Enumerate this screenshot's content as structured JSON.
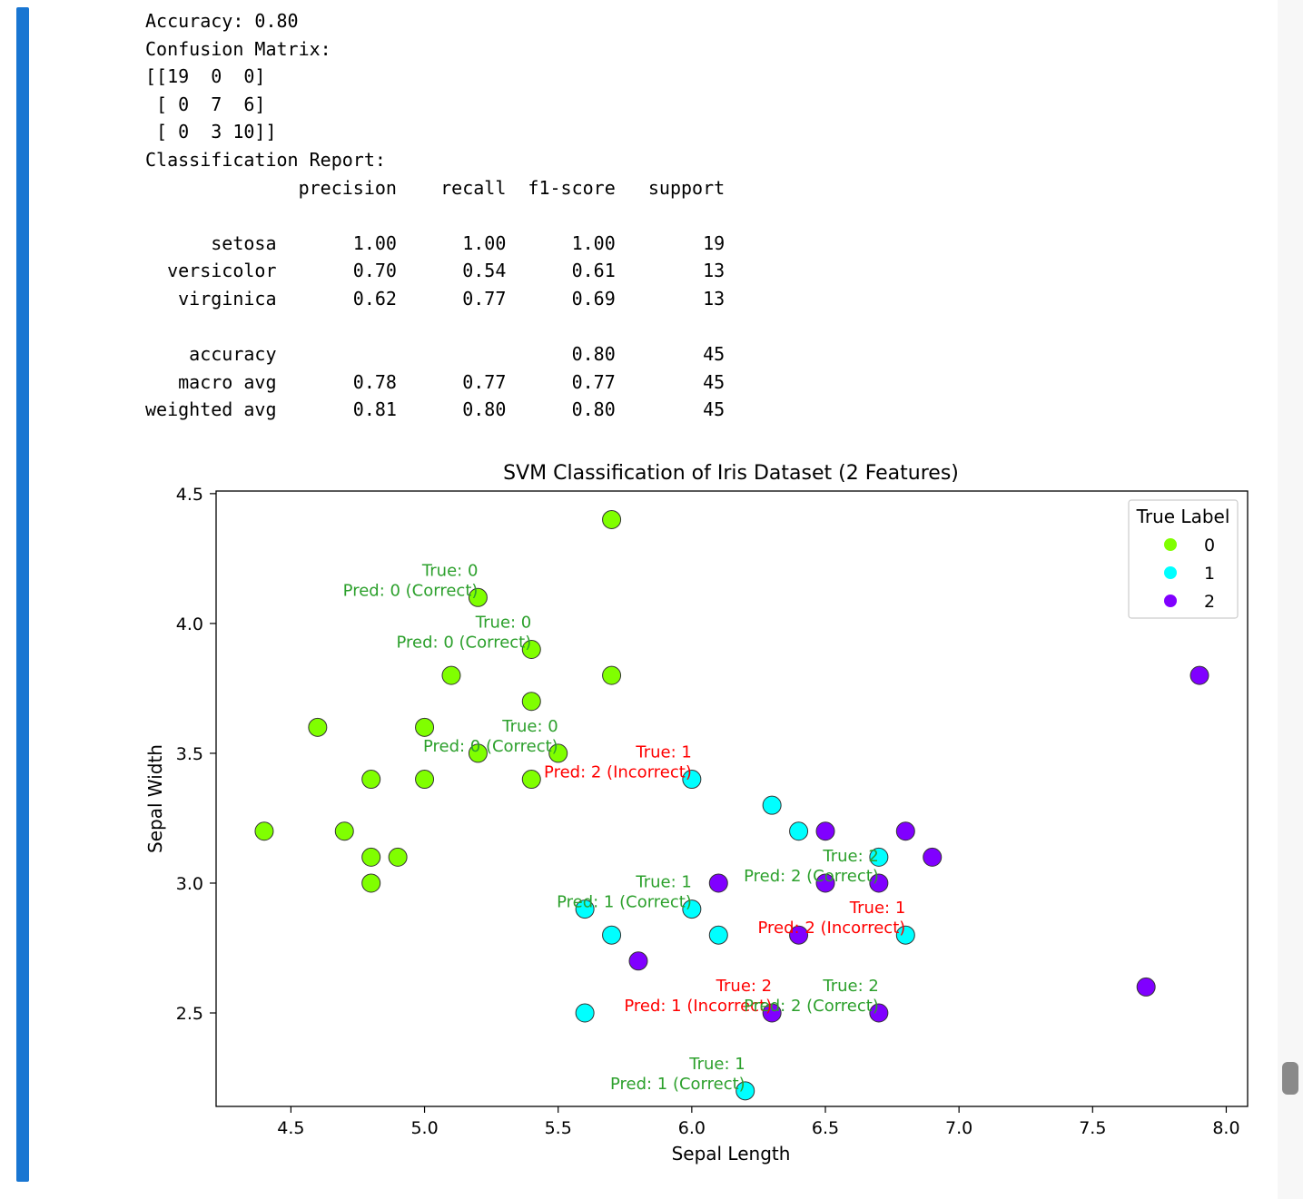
{
  "output": {
    "lines": [
      "Accuracy: 0.80",
      "Confusion Matrix:",
      "[[19  0  0]",
      " [ 0  7  6]",
      " [ 0  3 10]]",
      "Classification Report:",
      "              precision    recall  f1-score   support",
      "",
      "      setosa       1.00      1.00      1.00        19",
      "  versicolor       0.70      0.54      0.61        13",
      "   virginica       0.62      0.77      0.69        13",
      "",
      "    accuracy                           0.80        45",
      "   macro avg       0.78      0.77      0.77        45",
      "weighted avg       0.81      0.80      0.80        45"
    ]
  },
  "chart_data": {
    "type": "scatter",
    "title": "SVM Classification of Iris Dataset (2 Features)",
    "xlabel": "Sepal Length",
    "ylabel": "Sepal Width",
    "xlim": [
      4.22,
      8.08
    ],
    "ylim": [
      2.14,
      4.51
    ],
    "xticks": [
      "4.5",
      "5.0",
      "5.5",
      "6.0",
      "6.5",
      "7.0",
      "7.5",
      "8.0"
    ],
    "yticks": [
      "2.5",
      "3.0",
      "3.5",
      "4.0",
      "4.5"
    ],
    "grid": false,
    "legend": {
      "title": "True Label",
      "placement": "top-right",
      "entries": [
        {
          "label": "0",
          "color": "#80ff00"
        },
        {
          "label": "1",
          "color": "#00ffff"
        },
        {
          "label": "2",
          "color": "#8000ff"
        }
      ]
    },
    "class_colors": {
      "0": "#80ff00",
      "1": "#00ffff",
      "2": "#8000ff"
    },
    "annotation_colors": {
      "correct": "#2ca02c",
      "incorrect": "#ff0000"
    },
    "points": [
      {
        "x": 4.4,
        "y": 3.2,
        "true": 0
      },
      {
        "x": 4.6,
        "y": 3.6,
        "true": 0
      },
      {
        "x": 4.7,
        "y": 3.2,
        "true": 0
      },
      {
        "x": 4.8,
        "y": 3.4,
        "true": 0
      },
      {
        "x": 4.8,
        "y": 3.1,
        "true": 0
      },
      {
        "x": 4.8,
        "y": 3.0,
        "true": 0
      },
      {
        "x": 4.9,
        "y": 3.1,
        "true": 0
      },
      {
        "x": 5.0,
        "y": 3.6,
        "true": 0
      },
      {
        "x": 5.0,
        "y": 3.4,
        "true": 0
      },
      {
        "x": 5.1,
        "y": 3.8,
        "true": 0
      },
      {
        "x": 5.2,
        "y": 4.1,
        "true": 0
      },
      {
        "x": 5.2,
        "y": 3.5,
        "true": 0
      },
      {
        "x": 5.4,
        "y": 3.9,
        "true": 0
      },
      {
        "x": 5.4,
        "y": 3.7,
        "true": 0
      },
      {
        "x": 5.4,
        "y": 3.4,
        "true": 0
      },
      {
        "x": 5.5,
        "y": 3.5,
        "true": 0
      },
      {
        "x": 5.7,
        "y": 4.4,
        "true": 0
      },
      {
        "x": 5.7,
        "y": 3.8,
        "true": 0
      },
      {
        "x": 5.6,
        "y": 2.9,
        "true": 1
      },
      {
        "x": 5.6,
        "y": 2.5,
        "true": 1
      },
      {
        "x": 5.7,
        "y": 2.8,
        "true": 1
      },
      {
        "x": 6.0,
        "y": 3.4,
        "true": 1
      },
      {
        "x": 6.0,
        "y": 2.9,
        "true": 1
      },
      {
        "x": 6.1,
        "y": 2.8,
        "true": 1
      },
      {
        "x": 6.2,
        "y": 2.2,
        "true": 1
      },
      {
        "x": 6.3,
        "y": 3.3,
        "true": 1
      },
      {
        "x": 6.4,
        "y": 3.2,
        "true": 1
      },
      {
        "x": 6.7,
        "y": 3.1,
        "true": 1
      },
      {
        "x": 6.8,
        "y": 2.8,
        "true": 1
      },
      {
        "x": 5.8,
        "y": 2.7,
        "true": 2
      },
      {
        "x": 6.1,
        "y": 3.0,
        "true": 2
      },
      {
        "x": 6.3,
        "y": 2.5,
        "true": 2
      },
      {
        "x": 6.4,
        "y": 2.8,
        "true": 2
      },
      {
        "x": 6.5,
        "y": 3.2,
        "true": 2
      },
      {
        "x": 6.5,
        "y": 3.0,
        "true": 2
      },
      {
        "x": 6.7,
        "y": 3.0,
        "true": 2
      },
      {
        "x": 6.7,
        "y": 2.5,
        "true": 2
      },
      {
        "x": 6.8,
        "y": 3.2,
        "true": 2
      },
      {
        "x": 6.9,
        "y": 3.1,
        "true": 2
      },
      {
        "x": 7.7,
        "y": 2.6,
        "true": 2
      },
      {
        "x": 7.9,
        "y": 3.8,
        "true": 2
      }
    ],
    "annotations": [
      {
        "x": 5.2,
        "y": 4.1,
        "line1": "True: 0",
        "line2": "Pred: 0 (Correct)",
        "status": "correct"
      },
      {
        "x": 5.4,
        "y": 3.9,
        "line1": "True: 0",
        "line2": "Pred: 0 (Correct)",
        "status": "correct"
      },
      {
        "x": 5.5,
        "y": 3.5,
        "line1": "True: 0",
        "line2": "Pred: 0 (Correct)",
        "status": "correct"
      },
      {
        "x": 6.0,
        "y": 3.4,
        "line1": "True: 1",
        "line2": "Pred: 2 (Incorrect)",
        "status": "incorrect"
      },
      {
        "x": 6.7,
        "y": 3.0,
        "line1": "True: 2",
        "line2": "Pred: 2 (Correct)",
        "status": "correct"
      },
      {
        "x": 6.0,
        "y": 2.9,
        "line1": "True: 1",
        "line2": "Pred: 1 (Correct)",
        "status": "correct"
      },
      {
        "x": 6.8,
        "y": 2.8,
        "line1": "True: 1",
        "line2": "Pred: 2 (Incorrect)",
        "status": "incorrect"
      },
      {
        "x": 6.3,
        "y": 2.5,
        "line1": "True: 2",
        "line2": "Pred: 1 (Incorrect)",
        "status": "incorrect"
      },
      {
        "x": 6.7,
        "y": 2.5,
        "line1": "True: 2",
        "line2": "Pred: 2 (Correct)",
        "status": "correct"
      },
      {
        "x": 6.2,
        "y": 2.2,
        "line1": "True: 1",
        "line2": "Pred: 1 (Correct)",
        "status": "correct"
      }
    ]
  }
}
